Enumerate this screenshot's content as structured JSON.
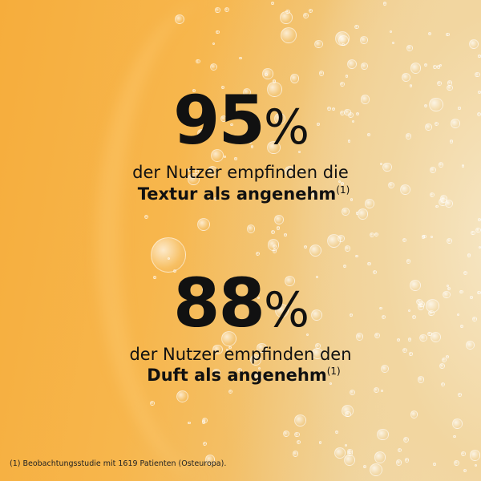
{
  "stat1": {
    "value": "95",
    "unit": "%",
    "line1": "der Nutzer empfinden die",
    "line2_bold": "Textur als angenehm",
    "ref": "(1)"
  },
  "stat2": {
    "value": "88",
    "unit": "%",
    "line1": "der Nutzer empfinden den",
    "line2_bold": "Duft als angenehm",
    "ref": "(1)"
  },
  "footnote": "(1) Beobachtungsstudie mit 1619 Patienten (Osteuropa).",
  "colors": {
    "orange": "#f6ad3c",
    "foam": "#f3e4c6",
    "text": "#111111"
  }
}
